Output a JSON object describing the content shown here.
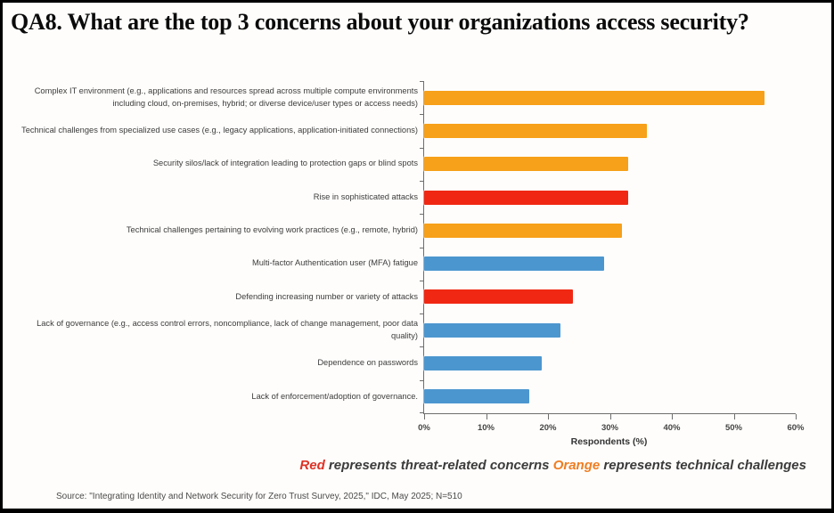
{
  "chart_data": {
    "type": "bar",
    "orientation": "horizontal",
    "title": "QA8. What are the top 3 concerns about your organizations access security?",
    "categories": [
      "Complex IT environment (e.g., applications and resources spread across multiple compute environments including cloud, on-premises, hybrid; or diverse device/user types or access needs)",
      "Technical challenges from specialized use cases (e.g., legacy applications, application-initiated connections)",
      "Security silos/lack of integration leading to protection gaps or blind spots",
      "Rise in sophisticated attacks",
      "Technical challenges pertaining to evolving work practices (e.g., remote, hybrid)",
      "Multi-factor Authentication user (MFA) fatigue",
      "Defending increasing number or variety of attacks",
      "Lack of governance (e.g., access control errors, noncompliance, lack of change management, poor data quality)",
      "Dependence on passwords",
      "Lack of enforcement/adoption of governance."
    ],
    "values": [
      55,
      36,
      33,
      33,
      32,
      29,
      24,
      22,
      19,
      17
    ],
    "bar_colors": [
      "orange",
      "orange",
      "orange",
      "red",
      "orange",
      "blue",
      "red",
      "blue",
      "blue",
      "blue"
    ],
    "palette": {
      "orange": "#F7A019",
      "red": "#F02813",
      "blue": "#4C96CF"
    },
    "xlabel": "Respondents (%)",
    "xlim": [
      0,
      60
    ],
    "x_tick_labels": [
      "0%",
      "10%",
      "20%",
      "30%",
      "40%",
      "50%",
      "60%"
    ],
    "grid": false,
    "legend_position": "bottom-right",
    "legend_segments": [
      {
        "text": "Red",
        "color": "#DE3226"
      },
      {
        "text": " represents threat-related concerns ",
        "color": "#3B3B3B"
      },
      {
        "text": "Orange",
        "color": "#EF7D22"
      },
      {
        "text": " represents technical challenges",
        "color": "#3B3B3B"
      }
    ]
  },
  "source": "Source: \"Integrating Identity and Network Security for Zero Trust Survey, 2025,\" IDC, May 2025; N=510"
}
